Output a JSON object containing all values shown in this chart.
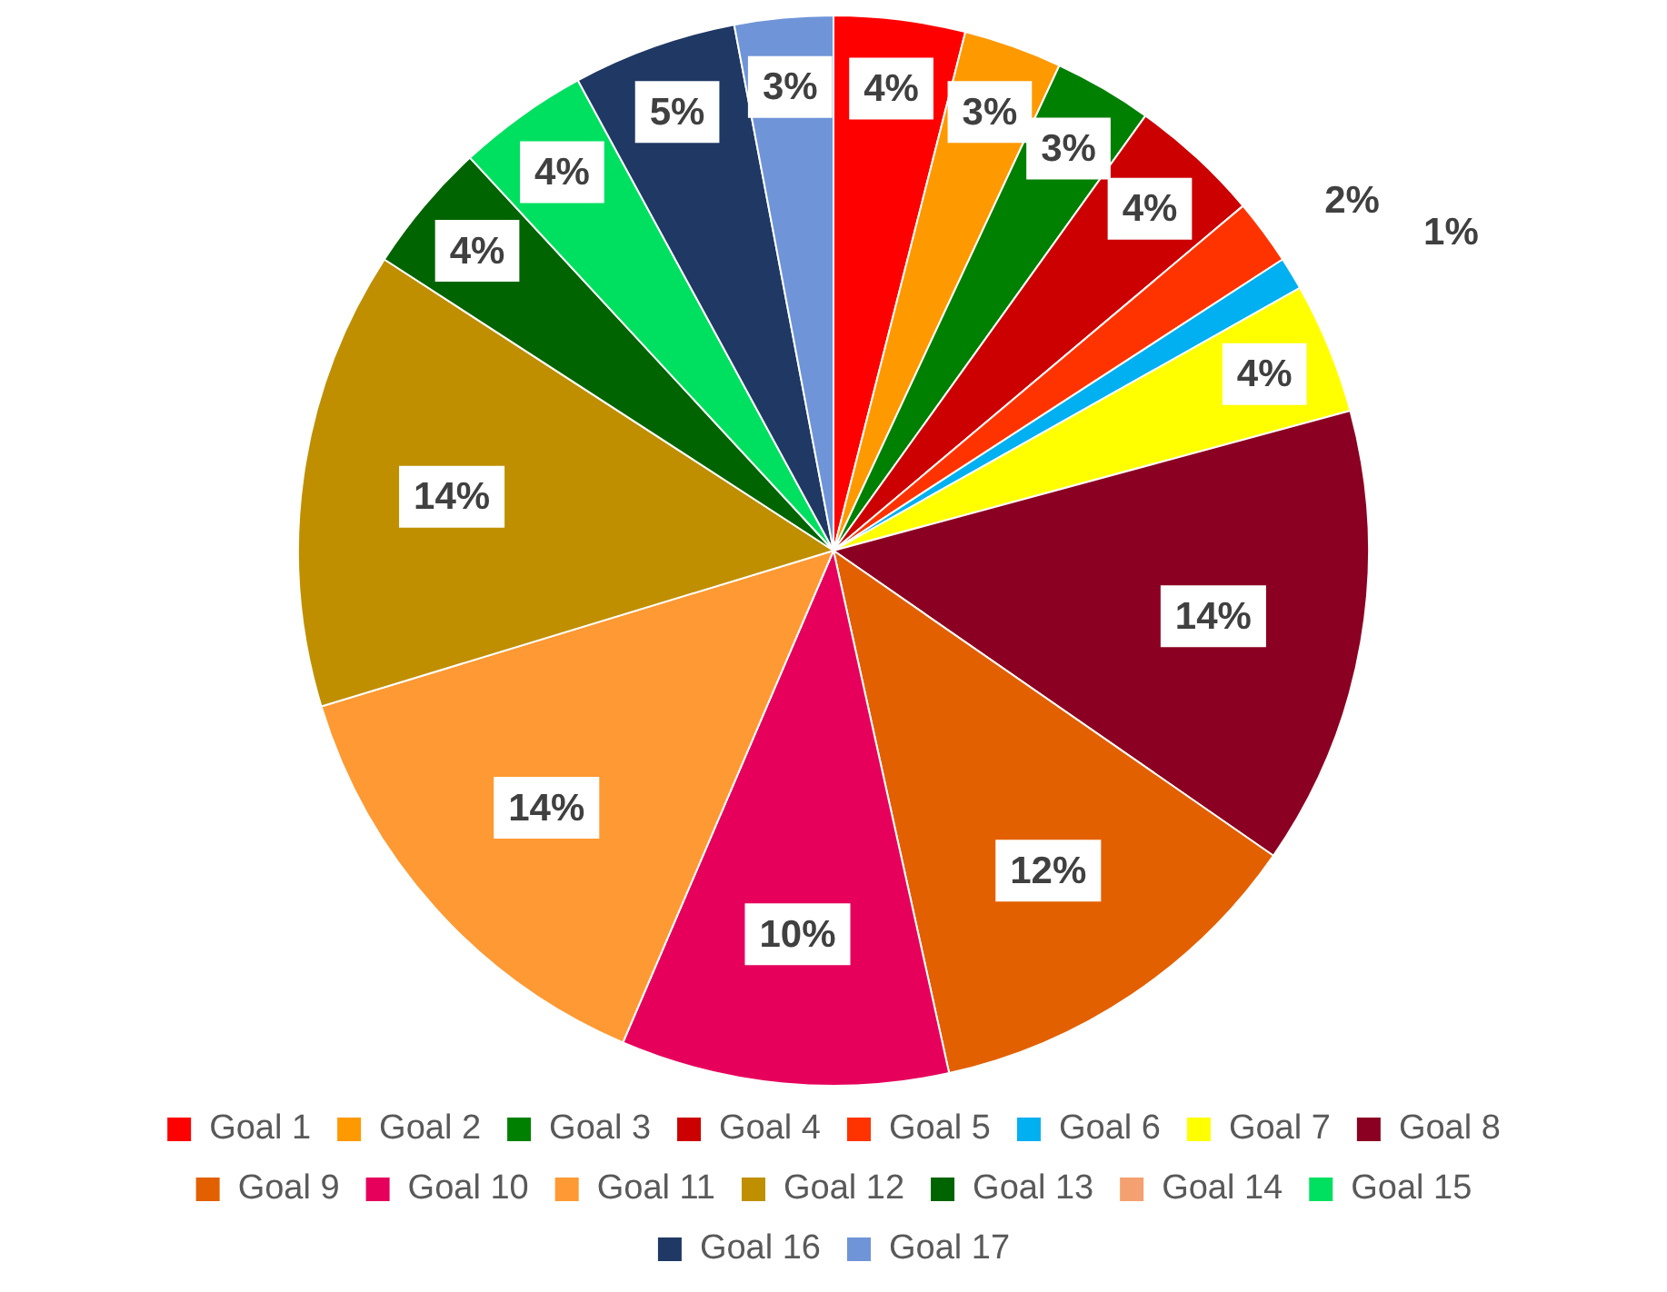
{
  "chart_data": {
    "type": "pie",
    "categories": [
      "Goal 1",
      "Goal 2",
      "Goal 3",
      "Goal 4",
      "Goal 5",
      "Goal 6",
      "Goal 7",
      "Goal 8",
      "Goal 9",
      "Goal 10",
      "Goal 11",
      "Goal 12",
      "Goal 13",
      "Goal 14",
      "Goal 15",
      "Goal 16",
      "Goal 17"
    ],
    "values": [
      4,
      3,
      3,
      4,
      2,
      1,
      4,
      14,
      12,
      10,
      14,
      14,
      4,
      0,
      4,
      5,
      3
    ],
    "value_labels": [
      "4%",
      "3%",
      "3%",
      "4%",
      "2%",
      "1%",
      "4%",
      "14%",
      "12%",
      "10%",
      "14%",
      "14%",
      "4%",
      null,
      "4%",
      "5%",
      "3%"
    ],
    "colors": [
      "#ff0000",
      "#ff9900",
      "#008000",
      "#cc0000",
      "#ff3300",
      "#00b0f0",
      "#ffff00",
      "#8b0022",
      "#e36000",
      "#e6005c",
      "#ff9933",
      "#bf8f00",
      "#006400",
      "#f4a070",
      "#00e060",
      "#1f3864",
      "#6f94d8"
    ],
    "legend": "bottom"
  }
}
